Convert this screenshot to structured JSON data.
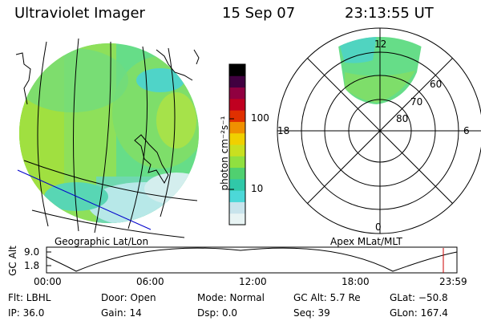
{
  "header": {
    "instrument": "Ultraviolet Imager",
    "date": "15 Sep 07",
    "time": "23:13:55 UT"
  },
  "colors": {
    "background": "#ffffff",
    "grid": "#000000",
    "track": "#0000cc",
    "marker": "#cc0000"
  },
  "colorbar": {
    "unit_label": "photon cm⁻²s⁻¹",
    "ticks": [
      "100",
      "10"
    ],
    "stops": [
      "#e8f4f4",
      "#c8e4ec",
      "#4cd8d8",
      "#30c8a8",
      "#50d070",
      "#90e040",
      "#c8e020",
      "#f0d000",
      "#f09000",
      "#e03000",
      "#c00020",
      "#900040",
      "#400040",
      "#000000"
    ]
  },
  "left_panel": {
    "label": "Geographic Lat/Lon"
  },
  "right_panel": {
    "label": "Apex MLat/MLT",
    "mlt_labels": [
      "12",
      "18",
      "6",
      "0"
    ],
    "mlat_labels": [
      "60",
      "70",
      "80"
    ]
  },
  "alt_plot": {
    "ylabel": "GC Alt",
    "yticks": [
      "9.0",
      "1.8"
    ],
    "xticks": [
      "00:00",
      "06:00",
      "12:00",
      "18:00",
      "23:59"
    ]
  },
  "info": {
    "row1": {
      "flt": "Flt: LBHL",
      "door": "Door: Open",
      "mode": "Mode: Normal",
      "gcalt": "GC Alt: 5.7 Re",
      "glat": "GLat: −50.8"
    },
    "row2": {
      "ip": "IP: 36.0",
      "gain": "Gain: 14",
      "dsp": "Dsp:     0.0",
      "seq": "Seq: 39",
      "glon": "GLon: 167.4"
    }
  }
}
